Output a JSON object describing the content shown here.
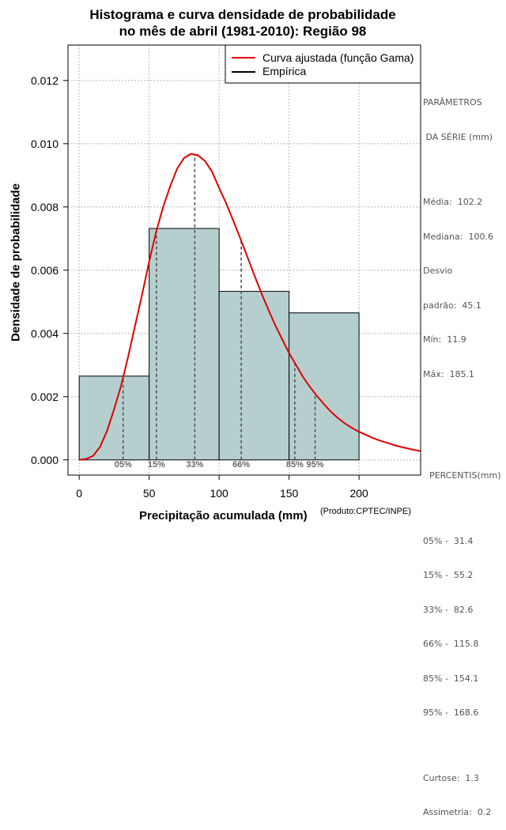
{
  "title_line1": "Histograma e curva densidade de probabilidade",
  "title_line2": "no mês de abril (1981-2010): Região 98",
  "credit": "(Produto:CPTEC/INPE)",
  "params": {
    "header1": "PARÂMETROS",
    "header2": " DA SÉRIE (mm)",
    "lines": [
      "Média:  102.2",
      "Mediana:  100.6",
      "Desvio",
      "padrão:  45.1",
      "Mín:  11.9",
      "Máx:  185.1"
    ]
  },
  "percentis": {
    "header": "PERCENTIS(mm)",
    "lines": [
      "05% -  31.4",
      "15% -  55.2",
      "33% -  82.6",
      "66% -  115.8",
      "85% -  154.1",
      "95% -  168.6"
    ]
  },
  "stats": {
    "lines": [
      "Curtose:  1.3",
      "Assimetria:  0.2"
    ]
  },
  "colors": {
    "bar": "#b5cfcf",
    "curve": "#e00000",
    "percentile": "#555555"
  },
  "chart_data": {
    "type": "bar",
    "xlabel": "Precipitação acumulada (mm)",
    "ylabel": "Densidade de probabilidade",
    "xlim": [
      -8,
      244
    ],
    "ylim": [
      -0.00048,
      0.01312
    ],
    "xticks": [
      0,
      50,
      100,
      150,
      200
    ],
    "yticks": [
      0.0,
      0.002,
      0.004,
      0.006,
      0.008,
      0.01,
      0.012
    ],
    "ytick_labels": [
      "0.000",
      "0.002",
      "0.004",
      "0.006",
      "0.008",
      "0.010",
      "0.012"
    ],
    "grid": true,
    "legend_position": "top-right",
    "legend": [
      "Curva ajustada (função Gama)",
      "Empírica"
    ],
    "bins": [
      {
        "x0": 0,
        "x1": 50,
        "density": 0.00265
      },
      {
        "x0": 50,
        "x1": 100,
        "density": 0.00732
      },
      {
        "x0": 100,
        "x1": 150,
        "density": 0.00533
      },
      {
        "x0": 150,
        "x1": 200,
        "density": 0.00465
      }
    ],
    "gamma_curve": {
      "x": [
        0,
        5,
        10,
        15,
        20,
        25,
        30,
        35,
        40,
        45,
        50,
        55,
        60,
        65,
        70,
        75,
        80,
        85,
        90,
        95,
        100,
        105,
        110,
        115,
        120,
        125,
        130,
        135,
        140,
        145,
        150,
        155,
        160,
        165,
        170,
        175,
        180,
        185,
        190,
        195,
        200,
        205,
        210,
        215,
        220,
        225,
        230,
        235,
        240,
        244
      ],
      "y": [
        0.0,
        3e-05,
        0.00013,
        0.00042,
        0.00093,
        0.00161,
        0.00236,
        0.00327,
        0.00426,
        0.00524,
        0.00628,
        0.00721,
        0.008,
        0.00865,
        0.00921,
        0.00955,
        0.00968,
        0.00963,
        0.00945,
        0.00911,
        0.0086,
        0.00812,
        0.00758,
        0.00702,
        0.00645,
        0.00586,
        0.0053,
        0.00477,
        0.00427,
        0.00382,
        0.00338,
        0.003,
        0.00262,
        0.0023,
        0.00202,
        0.00176,
        0.00152,
        0.00132,
        0.00115,
        0.00101,
        0.00089,
        0.00079,
        0.00069,
        0.00061,
        0.00054,
        0.00047,
        0.00041,
        0.00036,
        0.00031,
        0.00028
      ]
    },
    "percentiles": [
      {
        "label": "05%",
        "x": 31.4
      },
      {
        "label": "15%",
        "x": 55.2
      },
      {
        "label": "33%",
        "x": 82.6
      },
      {
        "label": "66%",
        "x": 115.8
      },
      {
        "label": "85%",
        "x": 154.1
      },
      {
        "label": "95%",
        "x": 168.6
      }
    ]
  }
}
